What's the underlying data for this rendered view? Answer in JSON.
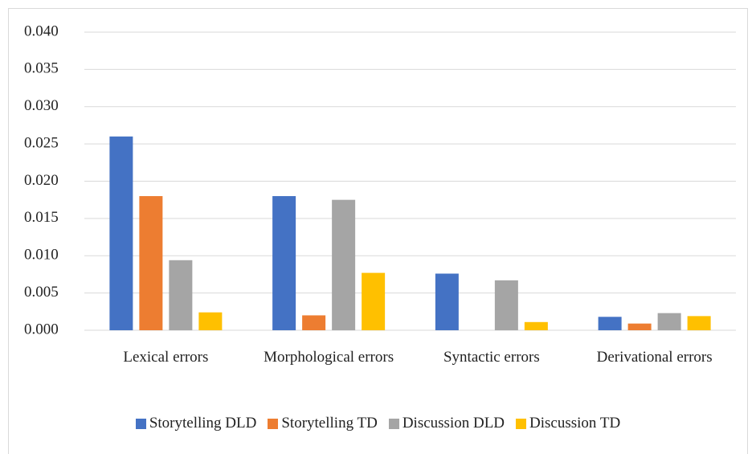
{
  "chart_data": {
    "type": "bar",
    "categories": [
      "Lexical errors",
      "Morphological errors",
      "Syntactic errors",
      "Derivational errors"
    ],
    "series": [
      {
        "name": "Storytelling DLD",
        "color": "#4472c4",
        "values": [
          0.026,
          0.018,
          0.0076,
          0.0018
        ]
      },
      {
        "name": "Storytelling TD",
        "color": "#ed7d31",
        "values": [
          0.018,
          0.002,
          0,
          0.0009
        ]
      },
      {
        "name": "Discussion DLD",
        "color": "#a5a5a5",
        "values": [
          0.0094,
          0.0175,
          0.0067,
          0.0023
        ]
      },
      {
        "name": "Discussion TD",
        "color": "#ffc000",
        "values": [
          0.0024,
          0.0077,
          0.0011,
          0.0019
        ]
      }
    ],
    "ylim": [
      0,
      0.04
    ],
    "yticks": [
      {
        "value": 0,
        "label": "0.000"
      },
      0.005,
      {
        "value": 0.01,
        "label": "0.010"
      },
      0.015,
      {
        "value": 0.02,
        "label": "0.020"
      },
      0.025,
      {
        "value": 0.03,
        "label": "0.030"
      },
      0.035,
      {
        "value": 0.04,
        "label": "0.040"
      }
    ],
    "grid": true,
    "legend": "bottom"
  }
}
